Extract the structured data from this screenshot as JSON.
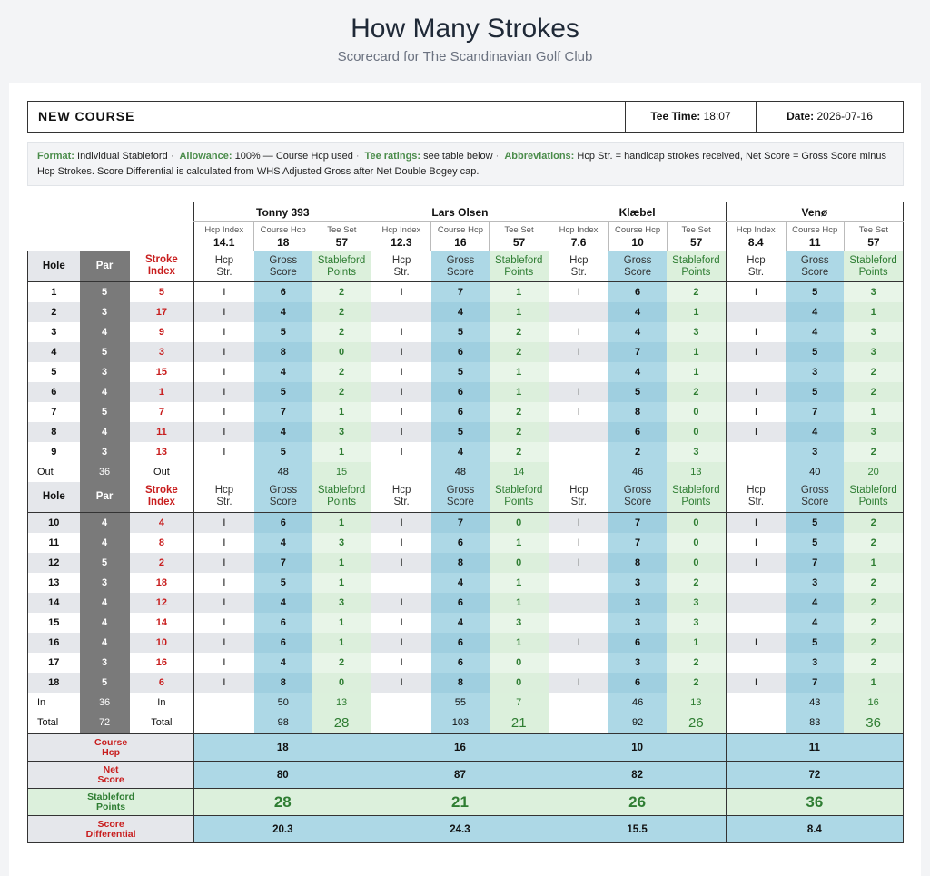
{
  "header": {
    "title": "How Many Strokes",
    "subtitle": "Scorecard for The Scandinavian Golf Club"
  },
  "info": {
    "course": "NEW COURSE",
    "tee_label": "Tee Time:",
    "tee_value": "18:07",
    "date_label": "Date:",
    "date_value": "2026-07-16"
  },
  "notes": [
    {
      "k": "Format:",
      "v": "Individual Stableford"
    },
    {
      "k": "Allowance:",
      "v": "100% — Course Hcp used"
    },
    {
      "k": "Tee ratings:",
      "v": "see table below"
    },
    {
      "k": "Abbreviations:",
      "v": "Hcp Str. = handicap strokes received, Net Score = Gross Score minus Hcp Strokes. Score Differential is calculated from WHS Adjusted Gross after Net Double Bogey cap."
    }
  ],
  "labels": {
    "hcp_index": "Hcp Index",
    "course_hcp": "Course Hcp",
    "tee_set": "Tee Set",
    "hole": "Hole",
    "par": "Par",
    "stroke": "Stroke",
    "index": "Index",
    "hcp": "Hcp",
    "str": "Str.",
    "gross": "Gross",
    "score": "Score",
    "stableford": "Stableford",
    "points": "Points",
    "out": "Out",
    "in": "In",
    "total": "Total",
    "course": "Course",
    "net": "Net",
    "differential": "Differential"
  },
  "stroke_mark": "I",
  "holes": [
    {
      "hole": "1",
      "par": "5",
      "si": "5"
    },
    {
      "hole": "2",
      "par": "3",
      "si": "17"
    },
    {
      "hole": "3",
      "par": "4",
      "si": "9"
    },
    {
      "hole": "4",
      "par": "5",
      "si": "3"
    },
    {
      "hole": "5",
      "par": "3",
      "si": "15"
    },
    {
      "hole": "6",
      "par": "4",
      "si": "1"
    },
    {
      "hole": "7",
      "par": "5",
      "si": "7"
    },
    {
      "hole": "8",
      "par": "4",
      "si": "11"
    },
    {
      "hole": "9",
      "par": "3",
      "si": "13"
    },
    {
      "hole": "10",
      "par": "4",
      "si": "4"
    },
    {
      "hole": "11",
      "par": "4",
      "si": "8"
    },
    {
      "hole": "12",
      "par": "5",
      "si": "2"
    },
    {
      "hole": "13",
      "par": "3",
      "si": "18"
    },
    {
      "hole": "14",
      "par": "4",
      "si": "12"
    },
    {
      "hole": "15",
      "par": "4",
      "si": "14"
    },
    {
      "hole": "16",
      "par": "4",
      "si": "10"
    },
    {
      "hole": "17",
      "par": "3",
      "si": "16"
    },
    {
      "hole": "18",
      "par": "5",
      "si": "6"
    }
  ],
  "par_out": "36",
  "par_in": "36",
  "par_total": "72",
  "players": [
    {
      "name": "Tonny 393",
      "hcp_index": "14.1",
      "course_hcp": "18",
      "tee_set": "57",
      "str": [
        1,
        1,
        1,
        1,
        1,
        1,
        1,
        1,
        1,
        1,
        1,
        1,
        1,
        1,
        1,
        1,
        1,
        1
      ],
      "gross": [
        "6",
        "4",
        "5",
        "8",
        "4",
        "5",
        "7",
        "4",
        "5",
        "6",
        "4",
        "7",
        "5",
        "4",
        "6",
        "6",
        "4",
        "8"
      ],
      "pts": [
        "2",
        "2",
        "2",
        "0",
        "2",
        "2",
        "1",
        "3",
        "1",
        "1",
        "3",
        "1",
        "1",
        "3",
        "1",
        "1",
        "2",
        "0"
      ],
      "out_gross": "48",
      "out_pts": "15",
      "in_gross": "50",
      "in_pts": "13",
      "total_gross": "98",
      "total_pts": "28",
      "b_course_hcp": "18",
      "b_net": "80",
      "b_pts": "28",
      "b_diff": "20.3"
    },
    {
      "name": "Lars Olsen",
      "hcp_index": "12.3",
      "course_hcp": "16",
      "tee_set": "57",
      "str": [
        1,
        0,
        1,
        1,
        1,
        1,
        1,
        1,
        1,
        1,
        1,
        1,
        0,
        1,
        1,
        1,
        1,
        1
      ],
      "gross": [
        "7",
        "4",
        "5",
        "6",
        "5",
        "6",
        "6",
        "5",
        "4",
        "7",
        "6",
        "8",
        "4",
        "6",
        "4",
        "6",
        "6",
        "8"
      ],
      "pts": [
        "1",
        "1",
        "2",
        "2",
        "1",
        "1",
        "2",
        "2",
        "2",
        "0",
        "1",
        "0",
        "1",
        "1",
        "3",
        "1",
        "0",
        "0"
      ],
      "out_gross": "48",
      "out_pts": "14",
      "in_gross": "55",
      "in_pts": "7",
      "total_gross": "103",
      "total_pts": "21",
      "b_course_hcp": "16",
      "b_net": "87",
      "b_pts": "21",
      "b_diff": "24.3"
    },
    {
      "name": "Klæbel",
      "hcp_index": "7.6",
      "course_hcp": "10",
      "tee_set": "57",
      "str": [
        1,
        0,
        1,
        1,
        0,
        1,
        1,
        0,
        0,
        1,
        1,
        1,
        0,
        0,
        0,
        1,
        0,
        1
      ],
      "gross": [
        "6",
        "4",
        "4",
        "7",
        "4",
        "5",
        "8",
        "6",
        "2",
        "7",
        "7",
        "8",
        "3",
        "3",
        "3",
        "6",
        "3",
        "6"
      ],
      "pts": [
        "2",
        "1",
        "3",
        "1",
        "1",
        "2",
        "0",
        "0",
        "3",
        "0",
        "0",
        "0",
        "2",
        "3",
        "3",
        "1",
        "2",
        "2"
      ],
      "out_gross": "46",
      "out_pts": "13",
      "in_gross": "46",
      "in_pts": "13",
      "total_gross": "92",
      "total_pts": "26",
      "b_course_hcp": "10",
      "b_net": "82",
      "b_pts": "26",
      "b_diff": "15.5"
    },
    {
      "name": "Venø",
      "hcp_index": "8.4",
      "course_hcp": "11",
      "tee_set": "57",
      "str": [
        1,
        0,
        1,
        1,
        0,
        1,
        1,
        1,
        0,
        1,
        1,
        1,
        0,
        0,
        0,
        1,
        0,
        1
      ],
      "gross": [
        "5",
        "4",
        "4",
        "5",
        "3",
        "5",
        "7",
        "4",
        "3",
        "5",
        "5",
        "7",
        "3",
        "4",
        "4",
        "5",
        "3",
        "7"
      ],
      "pts": [
        "3",
        "1",
        "3",
        "3",
        "2",
        "2",
        "1",
        "3",
        "2",
        "2",
        "2",
        "1",
        "2",
        "2",
        "2",
        "2",
        "2",
        "1"
      ],
      "out_gross": "40",
      "out_pts": "20",
      "in_gross": "43",
      "in_pts": "16",
      "total_gross": "83",
      "total_pts": "36",
      "b_course_hcp": "11",
      "b_net": "72",
      "b_pts": "36",
      "b_diff": "8.4"
    }
  ],
  "colors": {
    "gross_bg": "#add8e6",
    "points_bg": "#dcf0dc",
    "points_text": "#2e7d32",
    "stroke_index_text": "#c81e1e",
    "par_bg": "#7a7a7a"
  }
}
